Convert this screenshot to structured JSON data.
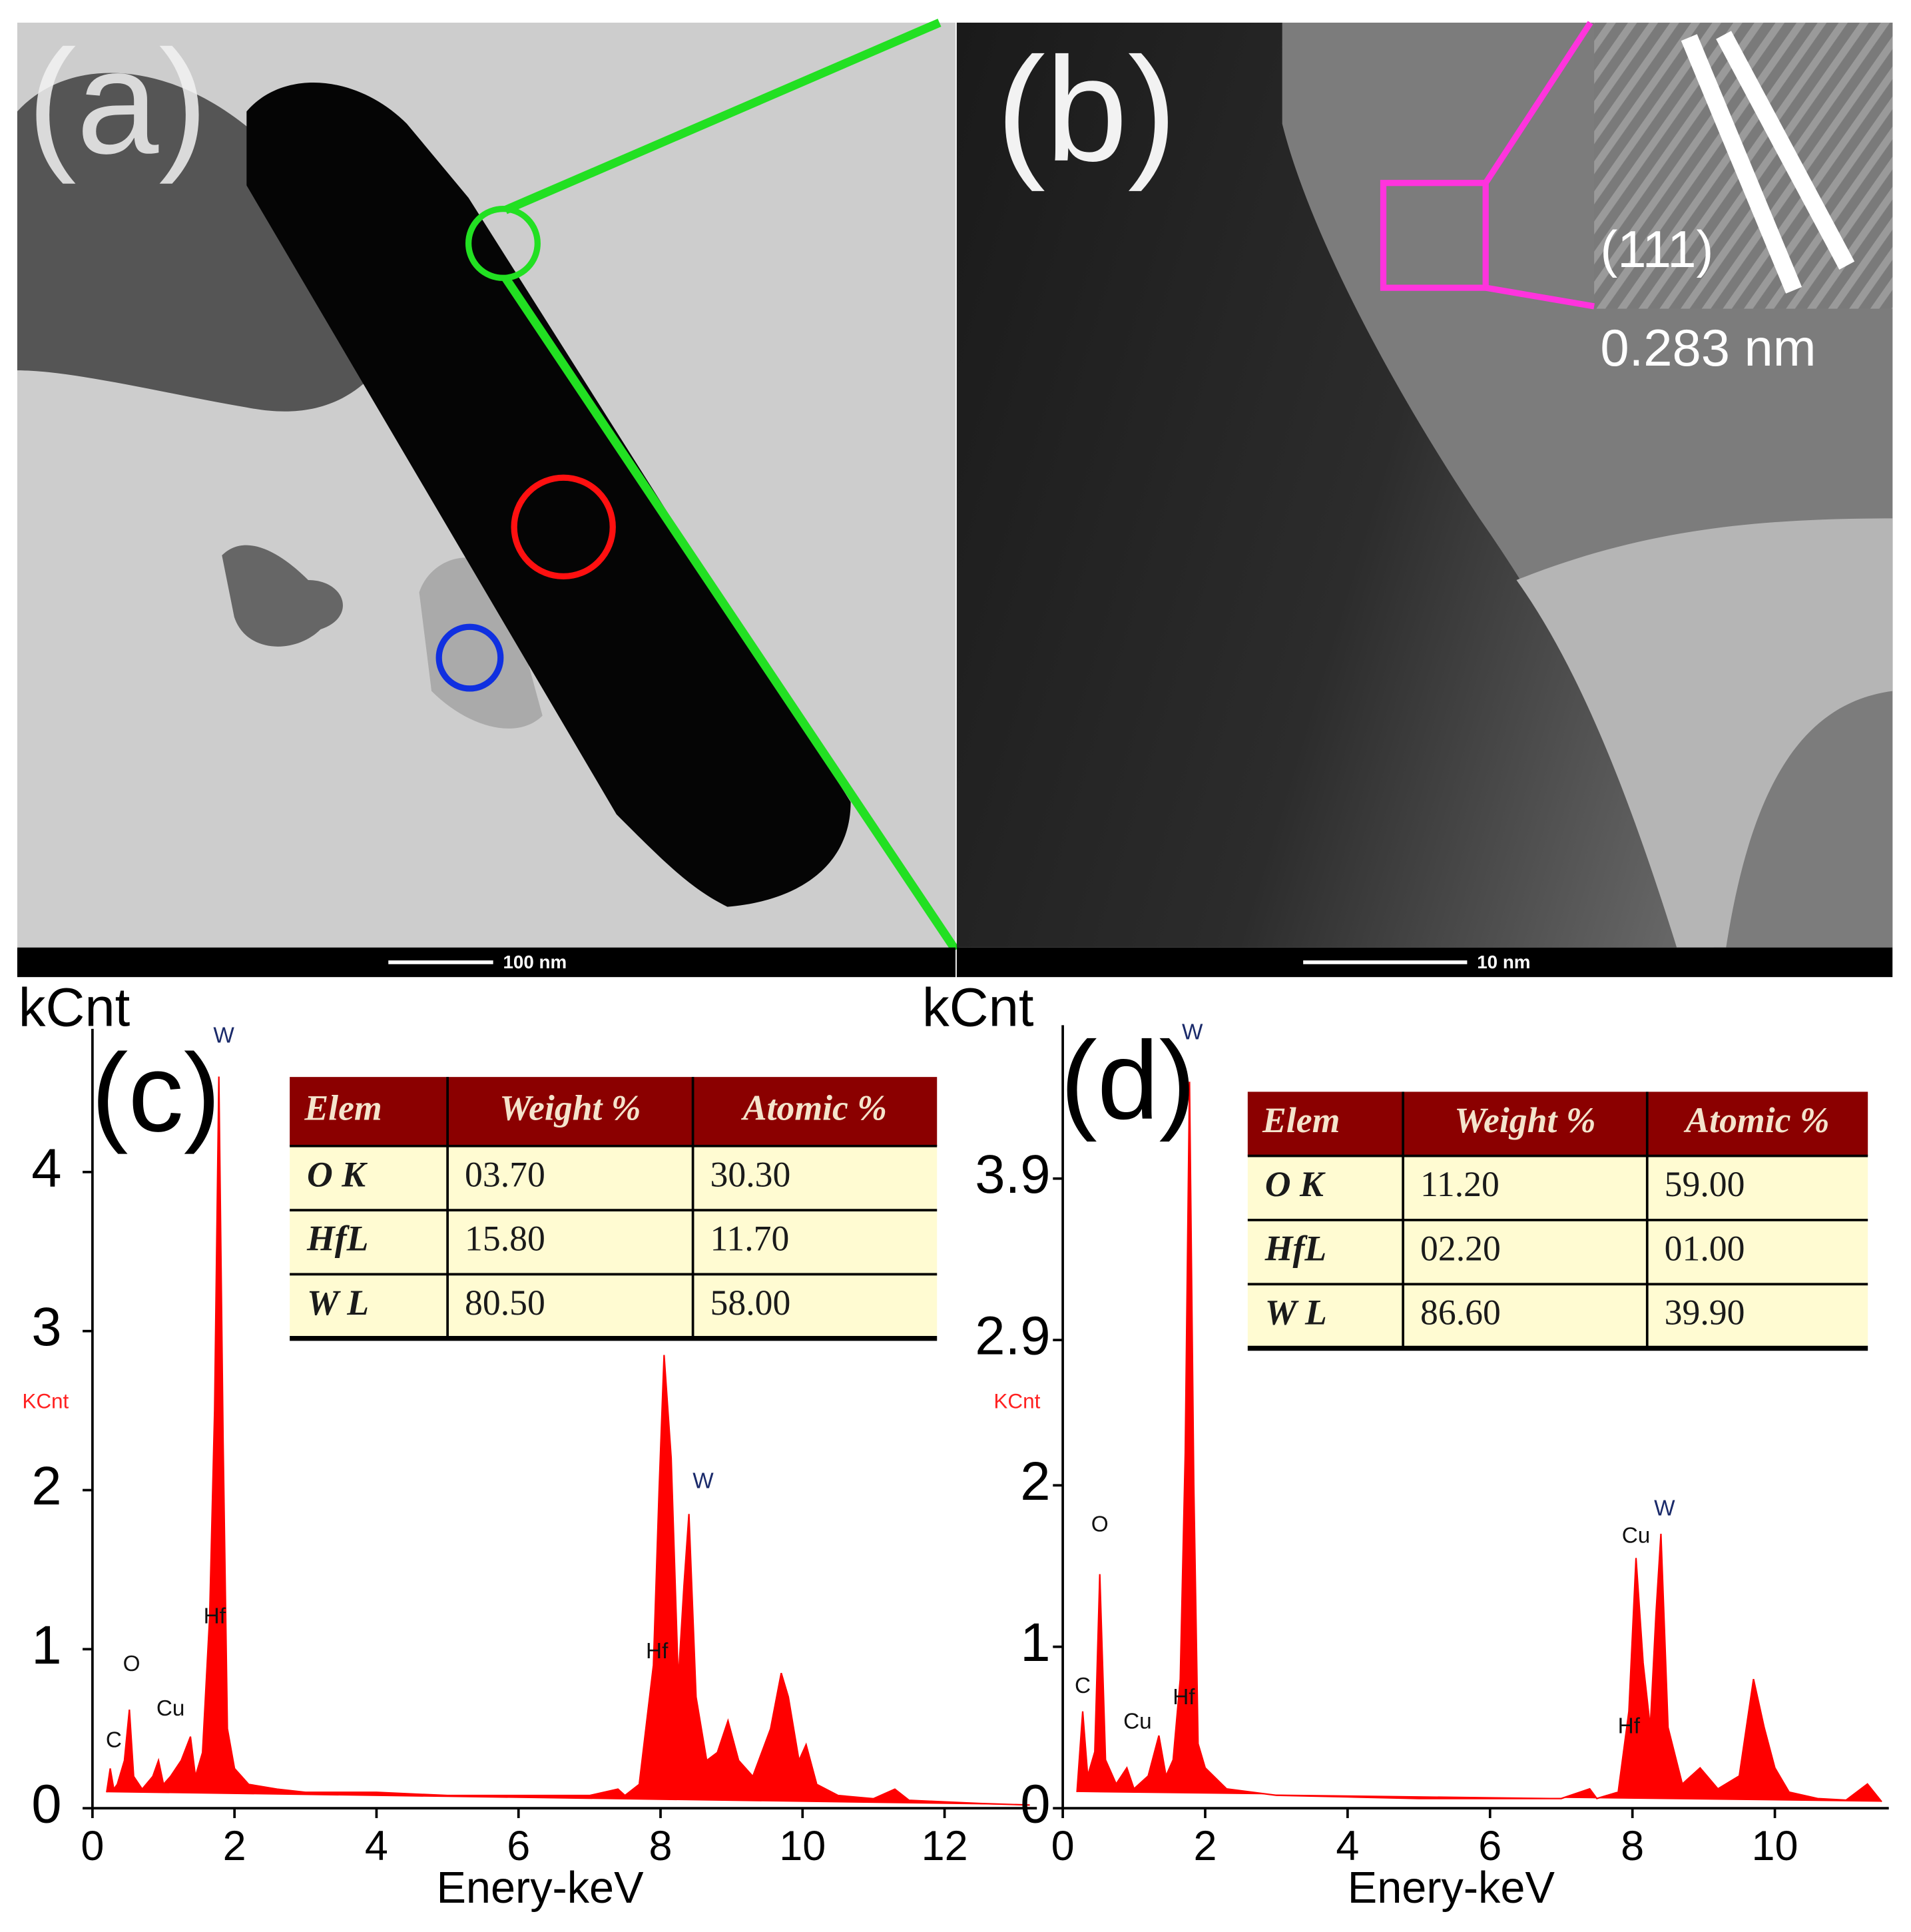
{
  "panels": [
    {
      "label": "(a)",
      "scale_bar": "100 nm"
    },
    {
      "label": "(b)",
      "scale_bar": "10 nm",
      "inset_label": "(111)",
      "spacing": "0.283 nm"
    }
  ],
  "chart_data": [
    {
      "type": "area",
      "label": "(c)",
      "y_label": "kCnt",
      "y_unit_label": "KCnt",
      "x_label": "Enery-keV",
      "color": "#ff0000",
      "x": [
        0.2,
        0.25,
        0.3,
        0.35,
        0.45,
        0.52,
        0.58,
        0.7,
        0.85,
        0.93,
        1.0,
        1.1,
        1.25,
        1.38,
        1.45,
        1.55,
        1.65,
        1.72,
        1.78,
        1.84,
        1.9,
        2.0,
        2.2,
        2.6,
        3.0,
        3.5,
        4.0,
        5.0,
        6.0,
        7.0,
        7.4,
        7.5,
        7.7,
        7.9,
        7.98,
        8.05,
        8.15,
        8.25,
        8.33,
        8.4,
        8.5,
        8.65,
        8.8,
        8.95,
        9.1,
        9.3,
        9.55,
        9.7,
        9.8,
        9.95,
        10.05,
        10.2,
        10.5,
        11.0,
        11.3,
        11.5,
        12.0,
        12.5,
        13.2
      ],
      "values": [
        0.1,
        0.25,
        0.12,
        0.15,
        0.3,
        0.62,
        0.2,
        0.12,
        0.2,
        0.3,
        0.15,
        0.2,
        0.3,
        0.45,
        0.2,
        0.35,
        1.2,
        2.5,
        4.6,
        2.3,
        0.5,
        0.25,
        0.15,
        0.12,
        0.1,
        0.1,
        0.1,
        0.08,
        0.08,
        0.08,
        0.12,
        0.08,
        0.15,
        0.9,
        2.0,
        2.85,
        2.2,
        0.8,
        1.4,
        1.85,
        0.7,
        0.3,
        0.35,
        0.55,
        0.3,
        0.2,
        0.5,
        0.85,
        0.7,
        0.3,
        0.4,
        0.15,
        0.08,
        0.06,
        0.12,
        0.05,
        0.04,
        0.03,
        0.02
      ],
      "xlim": [
        0,
        13.3
      ],
      "ylim": [
        0,
        4.9
      ],
      "xticks": [
        0,
        2,
        4,
        6,
        8,
        10,
        12
      ],
      "yticks": [
        0,
        1,
        2,
        3,
        4
      ],
      "annotations": [
        {
          "text": "C",
          "x": 0.3,
          "y": 0.42
        },
        {
          "text": "O",
          "x": 0.55,
          "y": 0.9
        },
        {
          "text": "Cu",
          "x": 1.1,
          "y": 0.62
        },
        {
          "text": "Hf",
          "x": 1.72,
          "y": 1.2
        },
        {
          "text": "W",
          "x": 1.85,
          "y": 4.85
        },
        {
          "text": "Hf",
          "x": 7.95,
          "y": 0.98
        },
        {
          "text": "W",
          "x": 8.6,
          "y": 2.05
        }
      ],
      "table": {
        "columns": [
          "Elem",
          "Weight %",
          "Atomic %"
        ],
        "rows": [
          [
            "O K",
            "03.70",
            "30.30"
          ],
          [
            "HfL",
            "15.80",
            "11.70"
          ],
          [
            "W L",
            "80.50",
            "58.00"
          ]
        ]
      }
    },
    {
      "type": "area",
      "label": "(d)",
      "y_label": "kCnt",
      "y_unit_label": "KCnt",
      "x_label": "Enery-keV",
      "color": "#ff0000",
      "x": [
        0.2,
        0.28,
        0.35,
        0.45,
        0.52,
        0.6,
        0.75,
        0.9,
        1.0,
        1.2,
        1.35,
        1.45,
        1.55,
        1.65,
        1.72,
        1.78,
        1.84,
        1.9,
        2.0,
        2.3,
        3.0,
        4.0,
        5.0,
        6.0,
        7.0,
        7.4,
        7.5,
        7.8,
        7.95,
        8.05,
        8.15,
        8.25,
        8.33,
        8.4,
        8.5,
        8.7,
        8.95,
        9.2,
        9.5,
        9.7,
        9.85,
        10.0,
        10.2,
        10.6,
        11.0,
        11.3,
        11.5
      ],
      "values": [
        0.1,
        0.6,
        0.2,
        0.35,
        1.45,
        0.3,
        0.15,
        0.25,
        0.12,
        0.2,
        0.45,
        0.2,
        0.3,
        0.8,
        2.2,
        4.5,
        2.0,
        0.4,
        0.25,
        0.12,
        0.08,
        0.07,
        0.06,
        0.06,
        0.06,
        0.12,
        0.06,
        0.1,
        0.6,
        1.55,
        0.9,
        0.5,
        1.2,
        1.7,
        0.5,
        0.15,
        0.25,
        0.12,
        0.2,
        0.8,
        0.5,
        0.25,
        0.1,
        0.06,
        0.05,
        0.15,
        0.04
      ],
      "xlim": [
        0,
        11.6
      ],
      "ylim": [
        0,
        4.85
      ],
      "xticks": [
        0,
        2,
        4,
        6,
        8,
        10
      ],
      "yticks": [
        0,
        1,
        2,
        2.9,
        3.9
      ],
      "annotations": [
        {
          "text": "C",
          "x": 0.28,
          "y": 0.75
        },
        {
          "text": "O",
          "x": 0.52,
          "y": 1.75
        },
        {
          "text": "Cu",
          "x": 1.05,
          "y": 0.53
        },
        {
          "text": "Hf",
          "x": 1.7,
          "y": 0.68
        },
        {
          "text": "W",
          "x": 1.82,
          "y": 4.8
        },
        {
          "text": "Hf",
          "x": 7.95,
          "y": 0.5
        },
        {
          "text": "Cu",
          "x": 8.05,
          "y": 1.68
        },
        {
          "text": "W",
          "x": 8.45,
          "y": 1.85
        }
      ],
      "table": {
        "columns": [
          "Elem",
          "Weight %",
          "Atomic %"
        ],
        "rows": [
          [
            "O K",
            "11.20",
            "59.00"
          ],
          [
            "HfL",
            "02.20",
            "01.00"
          ],
          [
            "W L",
            "86.60",
            "39.90"
          ]
        ]
      }
    }
  ]
}
